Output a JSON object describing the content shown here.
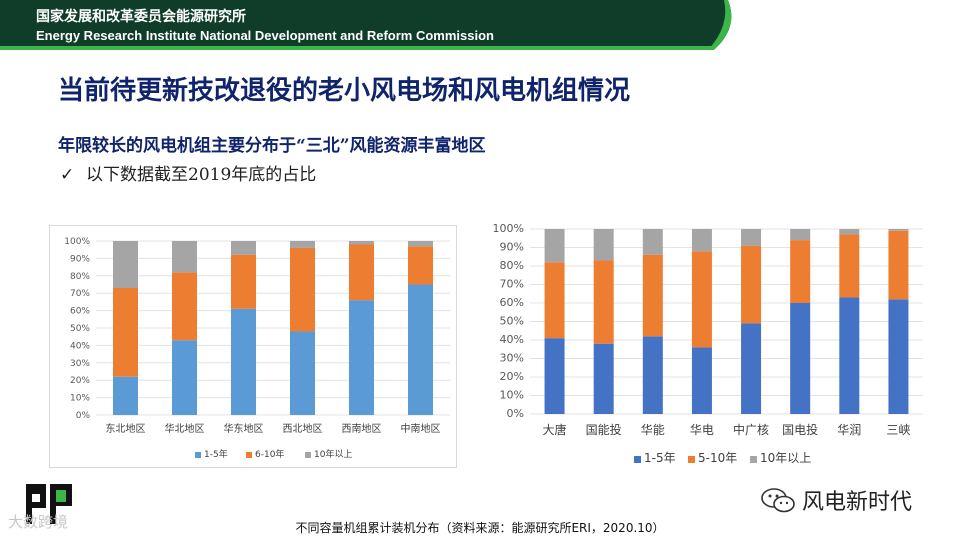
{
  "header": {
    "org_cn": "国家发展和改革委员会能源研究所",
    "org_en": "Energy Research Institute National Development and Reform Commission",
    "colors": {
      "band": "#0f3d2a",
      "accent": "#39b54a"
    }
  },
  "title": "当前待更新技改退役的老小风电场和风电机组情况",
  "subtitle": "年限较长的风电机组主要分布于“三北”风能资源丰富地区",
  "bullet": {
    "icon": "checkmark-icon",
    "text": "以下数据截至2019年底的占比"
  },
  "footer": {
    "caption": "不同容量机组累计装机分布（资料来源：能源研究所ERI，2020.10）"
  },
  "watermark": {
    "text": "大数跨境"
  },
  "wechat": {
    "icon": "wechat-icon",
    "label": "风电新时代"
  },
  "chart_data": [
    {
      "type": "bar",
      "stacked": true,
      "percent": true,
      "categories": [
        "东北地区",
        "华北地区",
        "华东地区",
        "西北地区",
        "西南地区",
        "中南地区"
      ],
      "series": [
        {
          "name": "1-5年",
          "values": [
            22,
            43,
            61,
            48,
            66,
            75
          ],
          "color": "#5b9bd5"
        },
        {
          "name": "6-10年",
          "values": [
            51,
            39,
            31,
            48,
            32,
            22
          ],
          "color": "#ed7d31"
        },
        {
          "name": "10年以上",
          "values": [
            27,
            18,
            8,
            4,
            2,
            3
          ],
          "color": "#a5a5a5"
        }
      ],
      "yticks": [
        "0%",
        "10%",
        "20%",
        "30%",
        "40%",
        "50%",
        "60%",
        "70%",
        "80%",
        "90%",
        "100%"
      ],
      "ylim": [
        0,
        100
      ],
      "legend": "bottom",
      "grid": true
    },
    {
      "type": "bar",
      "stacked": true,
      "percent": true,
      "categories": [
        "大唐",
        "国能投",
        "华能",
        "华电",
        "中广核",
        "国电投",
        "华润",
        "三峡"
      ],
      "series": [
        {
          "name": "1-5年",
          "values": [
            41,
            38,
            42,
            36,
            49,
            60,
            63,
            62
          ],
          "color": "#4472c4"
        },
        {
          "name": "5-10年",
          "values": [
            41,
            45,
            44,
            52,
            42,
            34,
            34,
            37
          ],
          "color": "#ed7d31"
        },
        {
          "name": "10年以上",
          "values": [
            18,
            17,
            14,
            12,
            9,
            6,
            3,
            1
          ],
          "color": "#a5a5a5"
        }
      ],
      "yticks": [
        "0%",
        "10%",
        "20%",
        "30%",
        "40%",
        "50%",
        "60%",
        "70%",
        "80%",
        "90%",
        "100%"
      ],
      "ylim": [
        0,
        100
      ],
      "legend": "bottom",
      "grid": true
    }
  ]
}
